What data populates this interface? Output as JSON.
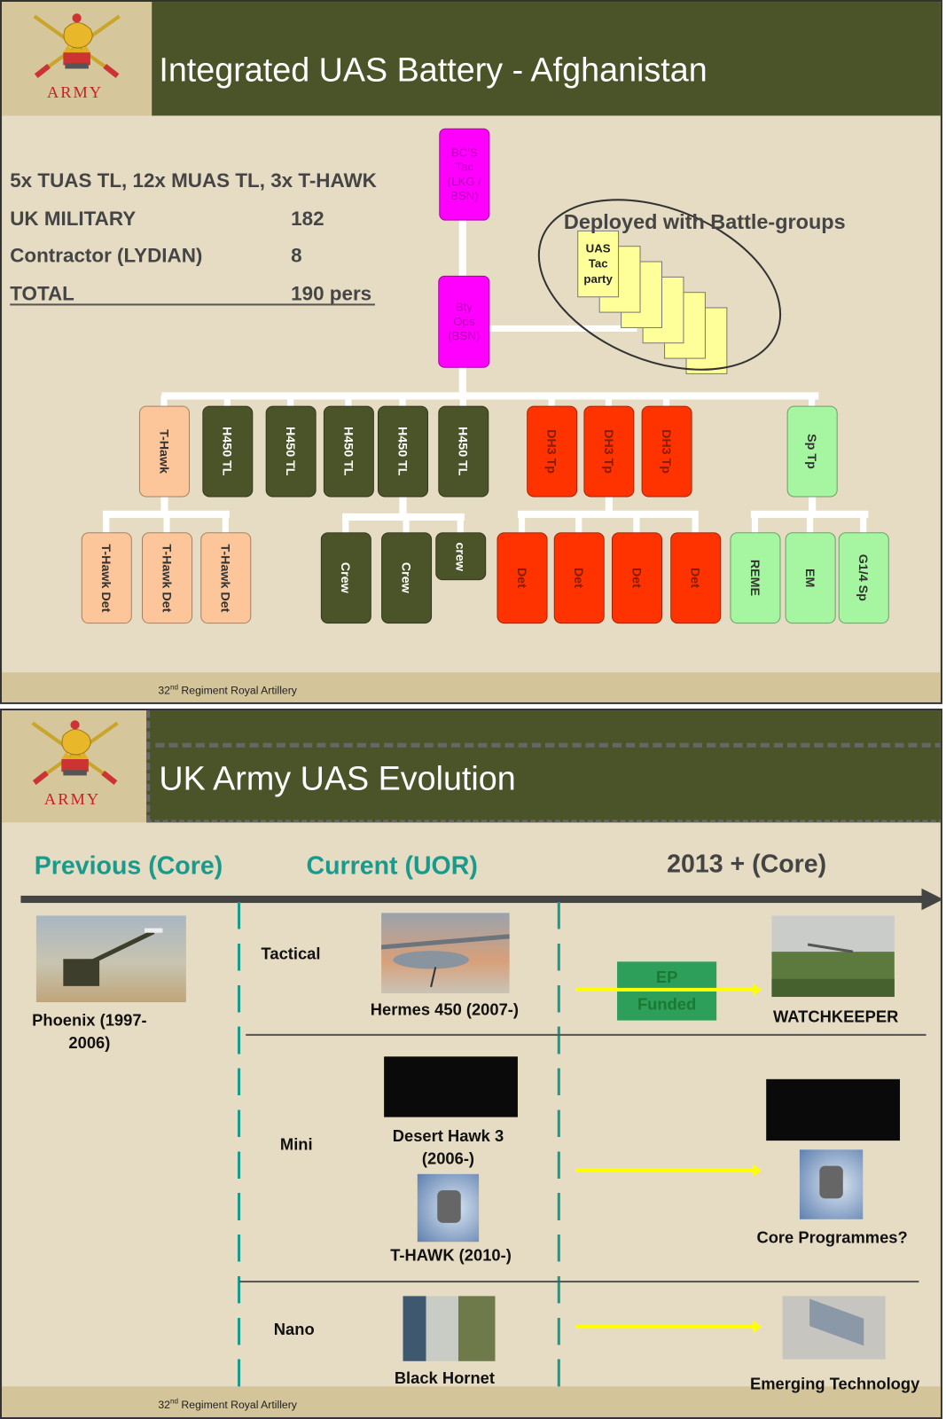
{
  "logo_text": "ARMY",
  "slide1": {
    "title": "Integrated UAS Battery - Afghanistan",
    "stats": {
      "line1": "5x TUAS TL, 12x MUAS TL, 3x T-HAWK",
      "uk_military_label": "UK MILITARY",
      "uk_military_value": "182",
      "contractor_label": "Contractor (LYDIAN)",
      "contractor_value": "8",
      "total_label": "TOTAL",
      "total_value": "190 pers"
    },
    "hq": {
      "bc_tac": [
        "BC'S",
        "Tac",
        "(LKG /",
        "BSN)"
      ],
      "bty_ops": [
        "Bty",
        "Ops",
        "(BSN)"
      ]
    },
    "deployed_label": "Deployed with Battle-groups",
    "uas_tac_party": [
      "UAS",
      "Tac",
      "party"
    ],
    "top_row": [
      {
        "label": "T-Hawk",
        "type": "thawk"
      },
      {
        "label": "H450 TL",
        "type": "h450"
      },
      {
        "label": "H450 TL",
        "type": "h450"
      },
      {
        "label": "H450 TL",
        "type": "h450"
      },
      {
        "label": "H450 TL",
        "type": "h450"
      },
      {
        "label": "H450 TL",
        "type": "h450"
      },
      {
        "label": "DH3 Tp",
        "type": "dh3"
      },
      {
        "label": "DH3 Tp",
        "type": "dh3"
      },
      {
        "label": "DH3 Tp",
        "type": "dh3"
      },
      {
        "label": "Sp Tp",
        "type": "sp"
      }
    ],
    "bottom_row": [
      {
        "label": "T-Hawk Det",
        "type": "thawk"
      },
      {
        "label": "T-Hawk Det",
        "type": "thawk"
      },
      {
        "label": "T-Hawk Det",
        "type": "thawk"
      },
      {
        "label": "Crew",
        "type": "h450"
      },
      {
        "label": "Crew",
        "type": "h450"
      },
      {
        "label": "crew",
        "type": "h450"
      },
      {
        "label": "Det",
        "type": "dh3"
      },
      {
        "label": "Det",
        "type": "dh3"
      },
      {
        "label": "Det",
        "type": "dh3"
      },
      {
        "label": "Det",
        "type": "dh3"
      },
      {
        "label": "REME",
        "type": "sp"
      },
      {
        "label": "EM",
        "type": "sp"
      },
      {
        "label": "G1/4 Sp",
        "type": "sp"
      }
    ],
    "colors": {
      "thawk": {
        "bg": "#fdc69a",
        "fg": "#333333"
      },
      "h450": {
        "bg": "#4b5429",
        "fg": "#ffffff"
      },
      "dh3": {
        "bg": "#ff3300",
        "fg": "#8a1a00"
      },
      "sp": {
        "bg": "#a6f5a0",
        "fg": "#333333"
      },
      "hq": "#ff00ff"
    },
    "footer": {
      "prefix": "32",
      "sup": "nd",
      "rest": " Regiment Royal Artillery"
    }
  },
  "slide2": {
    "title": "UK Army UAS Evolution",
    "columns": {
      "previous": "Previous (Core)",
      "current": "Current (UOR)",
      "future": "2013 + (Core)"
    },
    "accent_color": "#1a9a8c",
    "previous": {
      "line1": "Phoenix (1997-",
      "line2": "2006)"
    },
    "rows": {
      "tactical": {
        "category": "Tactical",
        "current": "Hermes 450 (2007-)",
        "status": [
          "EP",
          "Funded"
        ],
        "future": "WATCHKEEPER"
      },
      "mini": {
        "category": "Mini",
        "current1a": "Desert Hawk 3",
        "current1b": "(2006-)",
        "current2": "T-HAWK (2010-)",
        "future": "Core Programmes?"
      },
      "nano": {
        "category": "Nano",
        "current": "Black Hornet",
        "future": "Emerging Technology"
      }
    },
    "footer": {
      "prefix": "32",
      "sup": "nd",
      "rest": " Regiment Royal Artillery"
    }
  }
}
